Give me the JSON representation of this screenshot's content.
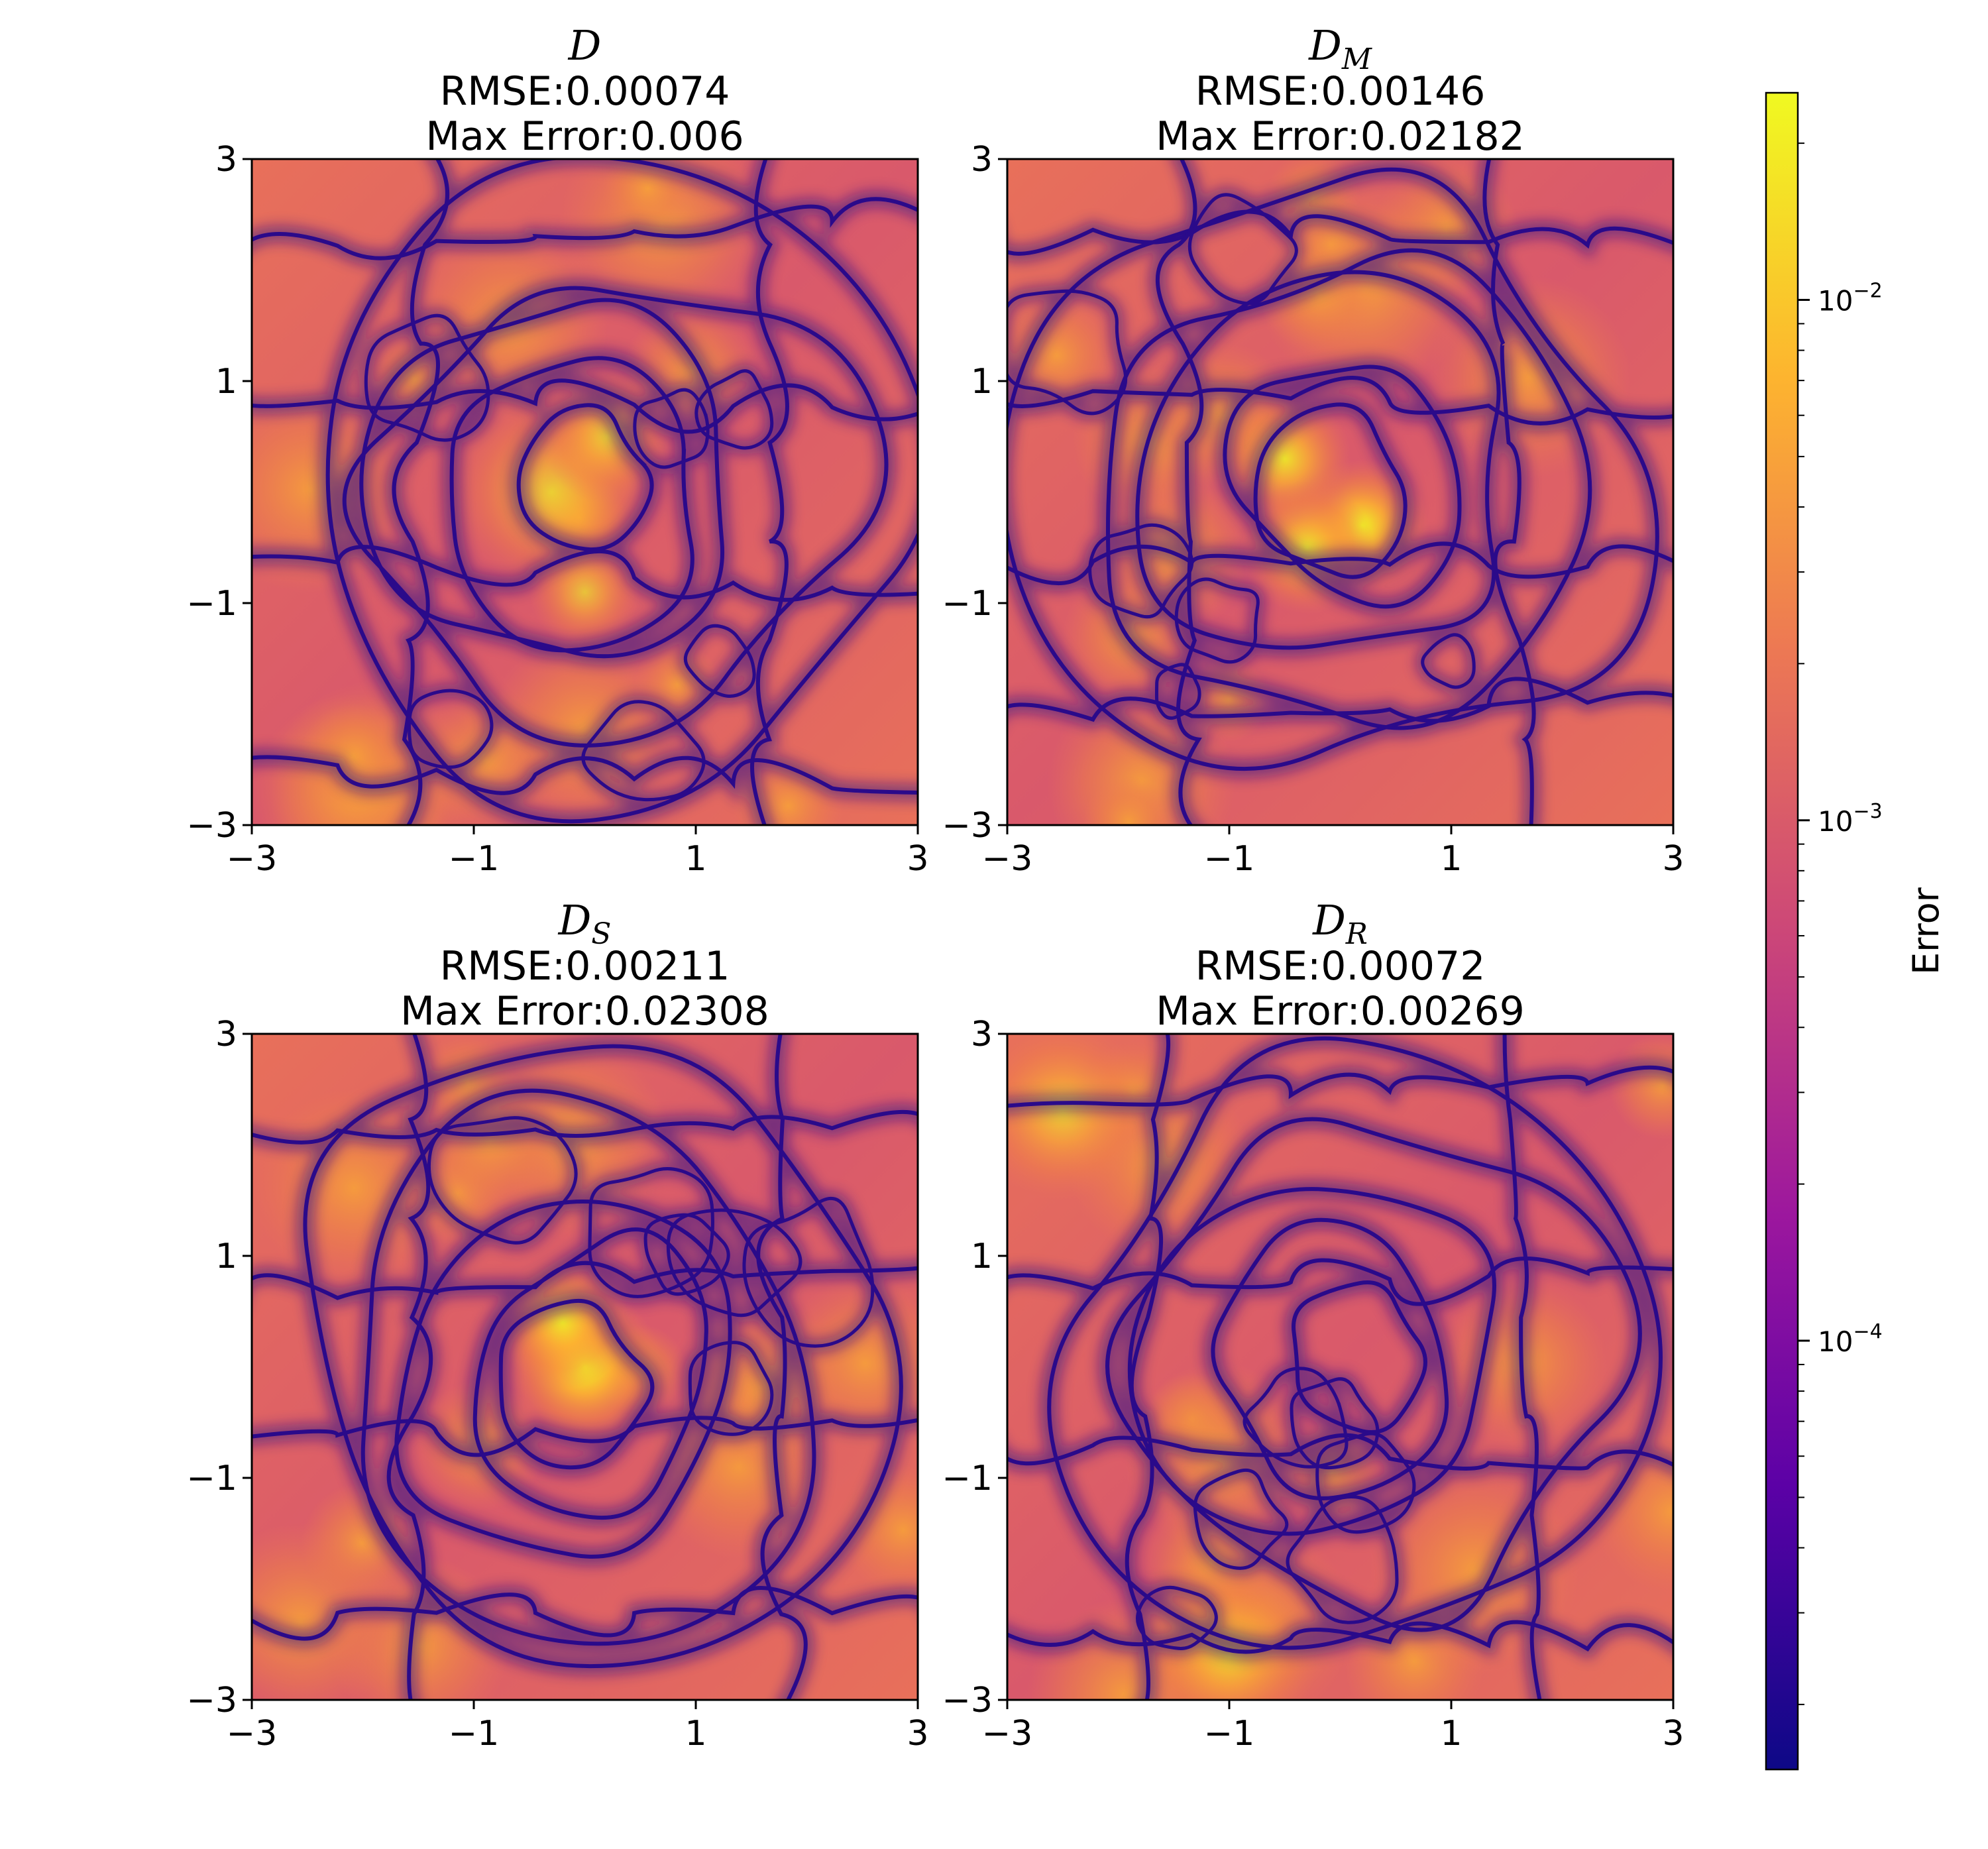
{
  "colors": {
    "colormap": "plasma",
    "stops": [
      "#0d0887",
      "#5c01a6",
      "#9c179e",
      "#cc4778",
      "#ed7953",
      "#fdb42f",
      "#f0f921"
    ],
    "contour": "#2a0a8a",
    "axis": "#000000"
  },
  "chart_data": [
    {
      "type": "heatmap",
      "title_symbol": "D",
      "title_subscript": "",
      "rmse_label": "RMSE:0.00074",
      "max_error_label": "Max Error:0.006",
      "xlim": [
        -3,
        3
      ],
      "ylim": [
        -3,
        3
      ],
      "xticks": [
        -3,
        -1,
        1,
        3
      ],
      "yticks": [
        -3,
        -1,
        1,
        3
      ],
      "xtick_labels": [
        "−3",
        "−1",
        "1",
        "3"
      ],
      "ytick_labels": [
        "−3",
        "−1",
        "1",
        "3"
      ],
      "hotspots": [
        {
          "x": -0.3,
          "y": 0.0,
          "intensity": 0.72,
          "spread": 0.9
        },
        {
          "x": 0.2,
          "y": 0.5,
          "intensity": 0.7,
          "spread": 0.6
        },
        {
          "x": 0.0,
          "y": -0.9,
          "intensity": 0.65,
          "spread": 0.5
        }
      ]
    },
    {
      "type": "heatmap",
      "title_symbol": "D",
      "title_subscript": "M",
      "rmse_label": "RMSE:0.00146",
      "max_error_label": "Max Error:0.02182",
      "xlim": [
        -3,
        3
      ],
      "ylim": [
        -3,
        3
      ],
      "xticks": [
        -3,
        -1,
        1,
        3
      ],
      "yticks": [
        -3,
        -1,
        1,
        3
      ],
      "xtick_labels": [
        "−3",
        "−1",
        "1",
        "3"
      ],
      "ytick_labels": [
        "−3",
        "−1",
        "1",
        "3"
      ],
      "hotspots": [
        {
          "x": 0.2,
          "y": -0.3,
          "intensity": 0.95,
          "spread": 0.6
        },
        {
          "x": -0.5,
          "y": 0.3,
          "intensity": 0.85,
          "spread": 0.6
        },
        {
          "x": -0.3,
          "y": -0.5,
          "intensity": 0.85,
          "spread": 0.6
        }
      ]
    },
    {
      "type": "heatmap",
      "title_symbol": "D",
      "title_subscript": "S",
      "rmse_label": "RMSE:0.00211",
      "max_error_label": "Max Error:0.02308",
      "xlim": [
        -3,
        3
      ],
      "ylim": [
        -3,
        3
      ],
      "xticks": [
        -3,
        -1,
        1,
        3
      ],
      "yticks": [
        -3,
        -1,
        1,
        3
      ],
      "xtick_labels": [
        "−3",
        "−1",
        "1",
        "3"
      ],
      "ytick_labels": [
        "−3",
        "−1",
        "1",
        "3"
      ],
      "hotspots": [
        {
          "x": 0.0,
          "y": 0.0,
          "intensity": 1.0,
          "spread": 0.7
        },
        {
          "x": -0.2,
          "y": 0.4,
          "intensity": 0.85,
          "spread": 0.6
        }
      ]
    },
    {
      "type": "heatmap",
      "title_symbol": "D",
      "title_subscript": "R",
      "rmse_label": "RMSE:0.00072",
      "max_error_label": "Max Error:0.00269",
      "xlim": [
        -3,
        3
      ],
      "ylim": [
        -3,
        3
      ],
      "xticks": [
        -3,
        -1,
        1,
        3
      ],
      "yticks": [
        -3,
        -1,
        1,
        3
      ],
      "xtick_labels": [
        "−3",
        "−1",
        "1",
        "3"
      ],
      "ytick_labels": [
        "−3",
        "−1",
        "1",
        "3"
      ],
      "hotspots": [
        {
          "x": -2.5,
          "y": 2.3,
          "intensity": 0.7,
          "spread": 0.8
        },
        {
          "x": -1.0,
          "y": -2.6,
          "intensity": 0.68,
          "spread": 0.8
        }
      ]
    }
  ],
  "colorbar": {
    "label": "Error",
    "scale": "log",
    "range": [
      1.5e-05,
      0.025
    ],
    "major_ticks": [
      {
        "value": 0.01,
        "base": "10",
        "exponent": "−2"
      },
      {
        "value": 0.001,
        "base": "10",
        "exponent": "−3"
      },
      {
        "value": 0.0001,
        "base": "10",
        "exponent": "−4"
      }
    ]
  }
}
